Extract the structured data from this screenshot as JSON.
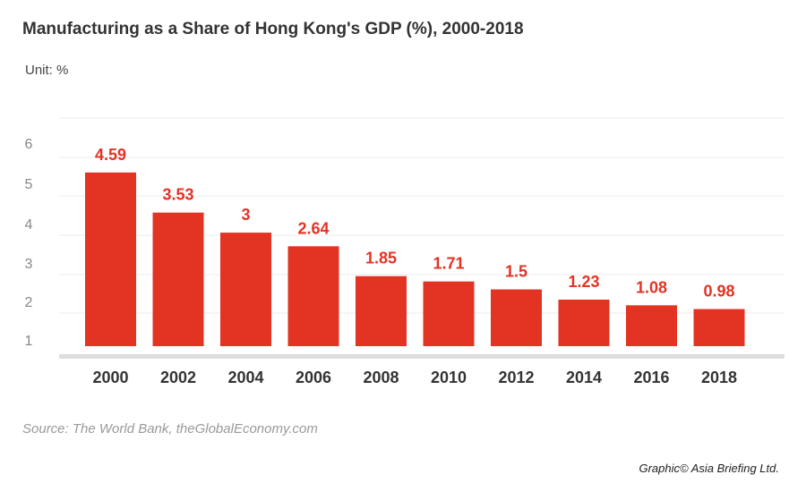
{
  "title": "Manufacturing as a Share of Hong Kong's GDP (%), 2000-2018",
  "unit": "Unit: %",
  "source": "Source: The World Bank, theGlobalEconomy.com",
  "credit": "Graphic© Asia Briefing Ltd.",
  "colors": {
    "bar": "#e23323",
    "label": "#e23323",
    "axis": "#dddddd"
  },
  "chart_data": {
    "type": "bar",
    "title": "Manufacturing as a Share of Hong Kong's GDP (%), 2000-2018",
    "xlabel": "",
    "ylabel": "Unit: %",
    "categories": [
      "2000",
      "2002",
      "2004",
      "2006",
      "2008",
      "2010",
      "2012",
      "2014",
      "2016",
      "2018"
    ],
    "values": [
      4.59,
      3.53,
      3,
      2.64,
      1.85,
      1.71,
      1.5,
      1.23,
      1.08,
      0.98
    ],
    "yticks": [
      "1",
      "2",
      "3",
      "4",
      "5",
      "6"
    ],
    "grid": true
  }
}
